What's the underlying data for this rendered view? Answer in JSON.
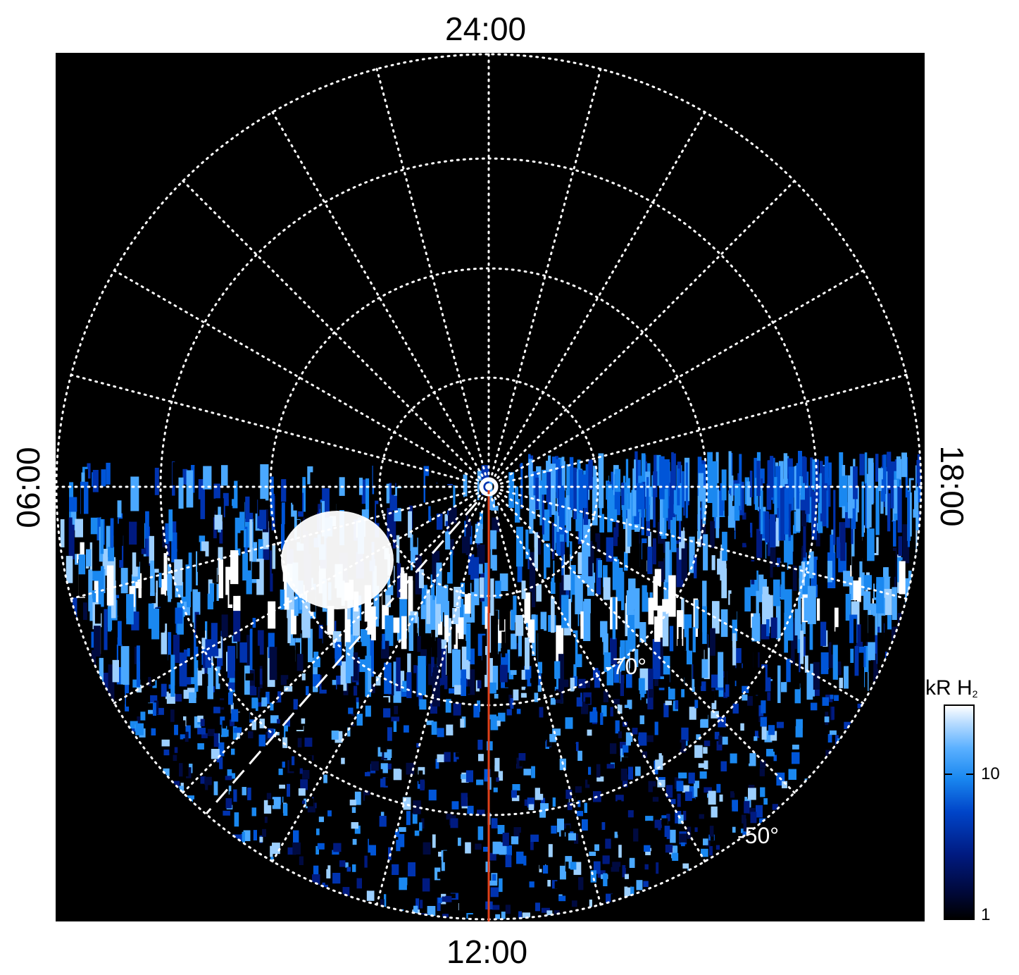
{
  "local_time_labels": {
    "top": "24:00",
    "bottom": "12:00",
    "left": "06:00",
    "right": "18:00"
  },
  "latitude_labels": {
    "inner": "-70°",
    "outer": "-50°"
  },
  "colorbar": {
    "unit": "kR H",
    "unit_subscript": "2",
    "ticks": [
      "10",
      "1"
    ],
    "scale": "log"
  },
  "colors": {
    "background": "#000000",
    "grid": "#ffffff",
    "meridian_line": "#e0401a",
    "emission_dark": "#001a80",
    "emission_mid": "#1a88f0",
    "emission_bright": "#ffffff"
  }
}
